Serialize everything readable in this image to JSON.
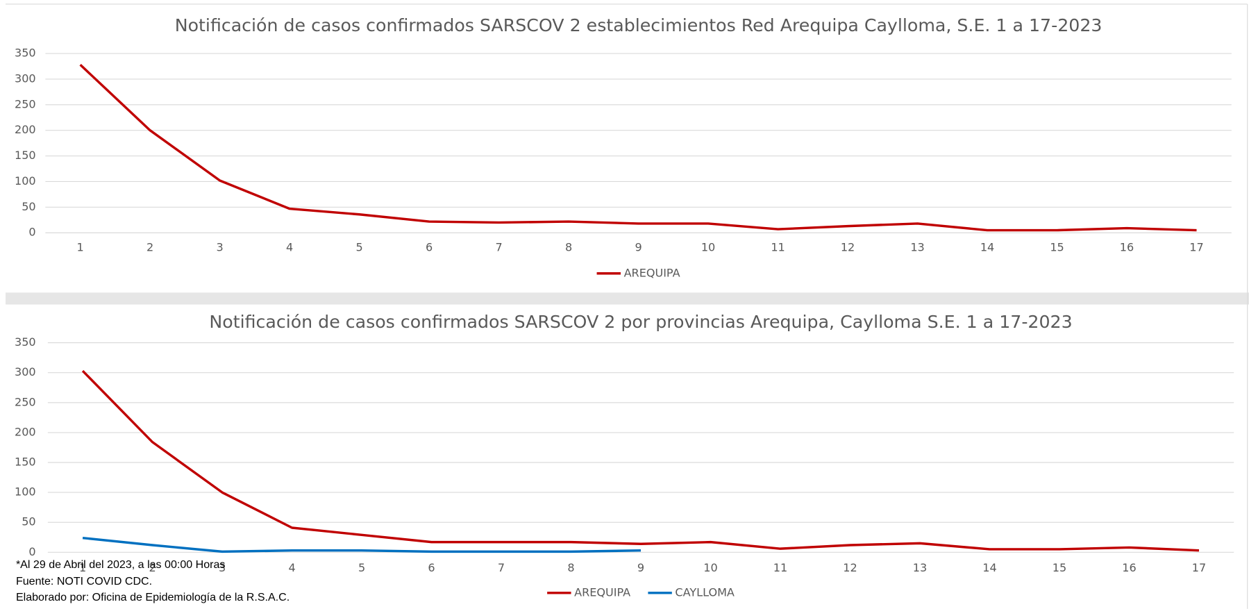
{
  "chart_data": [
    {
      "type": "line",
      "title": "Notificación de casos confirmados SARSCOV 2 establecimientos Red Arequipa Caylloma, S.E. 1 a 17-2023",
      "categories": [
        "1",
        "2",
        "3",
        "4",
        "5",
        "6",
        "7",
        "8",
        "9",
        "10",
        "11",
        "12",
        "13",
        "14",
        "15",
        "16",
        "17"
      ],
      "series": [
        {
          "name": "AREQUIPA",
          "color": "#c00000",
          "values": [
            328,
            200,
            102,
            47,
            36,
            22,
            20,
            22,
            18,
            18,
            7,
            13,
            18,
            5,
            5,
            9,
            5
          ]
        }
      ],
      "ylim": [
        0,
        350
      ],
      "yticks": [
        0,
        50,
        100,
        150,
        200,
        250,
        300,
        350
      ],
      "grid": true,
      "legend": "bottom"
    },
    {
      "type": "line",
      "title": "Notificación de casos confirmados SARSCOV 2 por provincias Arequipa, Caylloma S.E. 1 a 17-2023",
      "categories": [
        "1",
        "2",
        "3",
        "4",
        "5",
        "6",
        "7",
        "8",
        "9",
        "10",
        "11",
        "12",
        "13",
        "14",
        "15",
        "16",
        "17"
      ],
      "series": [
        {
          "name": "AREQUIPA",
          "color": "#c00000",
          "values": [
            303,
            184,
            100,
            41,
            29,
            17,
            17,
            17,
            14,
            17,
            6,
            12,
            15,
            5,
            5,
            8,
            3
          ]
        },
        {
          "name": "CAYLLOMA",
          "color": "#0070c0",
          "values": [
            24,
            12,
            1,
            3,
            3,
            1,
            1,
            1,
            3,
            null,
            null,
            null,
            null,
            null,
            null,
            null,
            null
          ]
        }
      ],
      "ylim": [
        0,
        350
      ],
      "yticks": [
        0,
        50,
        100,
        150,
        200,
        250,
        300,
        350
      ],
      "grid": true,
      "legend": "bottom"
    }
  ],
  "notes": [
    "*Al 29 de Abril del 2023, a las 00:00 Horas",
    "Fuente: NOTI COVID CDC.",
    "Elaborado por: Oficina de Epidemiología de la R.S.A.C."
  ]
}
